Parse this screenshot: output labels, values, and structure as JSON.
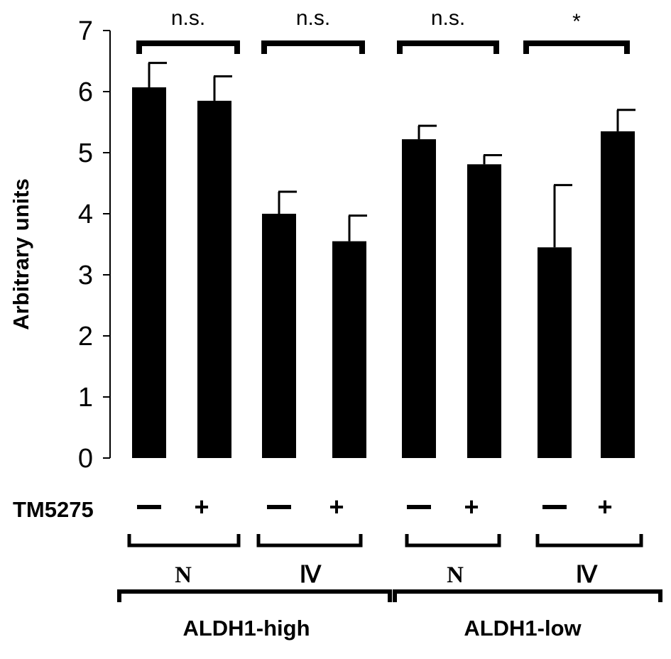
{
  "chart_data": {
    "type": "bar",
    "title": "",
    "xlabel": "",
    "ylabel": "Arbitrary units",
    "ylim": [
      0,
      7
    ],
    "yticks": [
      "0",
      "1",
      "2",
      "3",
      "4",
      "5",
      "6",
      "7"
    ],
    "grid": false,
    "legend": "none",
    "bar_color": "#000000",
    "bars": [
      {
        "group": "ALDH1-high",
        "stage": "N",
        "treatment": "−",
        "value": 6.07,
        "error": 0.4
      },
      {
        "group": "ALDH1-high",
        "stage": "N",
        "treatment": "+",
        "value": 5.85,
        "error": 0.4
      },
      {
        "group": "ALDH1-high",
        "stage": "Ⅳ",
        "treatment": "−",
        "value": 4.0,
        "error": 0.36
      },
      {
        "group": "ALDH1-high",
        "stage": "Ⅳ",
        "treatment": "+",
        "value": 3.55,
        "error": 0.42
      },
      {
        "group": "ALDH1-low",
        "stage": "N",
        "treatment": "−",
        "value": 5.22,
        "error": 0.22
      },
      {
        "group": "ALDH1-low",
        "stage": "N",
        "treatment": "+",
        "value": 4.81,
        "error": 0.15
      },
      {
        "group": "ALDH1-low",
        "stage": "Ⅳ",
        "treatment": "−",
        "value": 3.45,
        "error": 1.02
      },
      {
        "group": "ALDH1-low",
        "stage": "Ⅳ",
        "treatment": "+",
        "value": 5.35,
        "error": 0.35
      }
    ],
    "significance": [
      {
        "label": "n.s."
      },
      {
        "label": "n.s."
      },
      {
        "label": "n.s."
      },
      {
        "label": "*"
      }
    ],
    "treatment": {
      "name": "TM5275",
      "minus": "−",
      "plus": "+"
    },
    "stages": [
      "N",
      "Ⅳ",
      "N",
      "Ⅳ"
    ],
    "groups": [
      "ALDH1-high",
      "ALDH1-low"
    ]
  }
}
